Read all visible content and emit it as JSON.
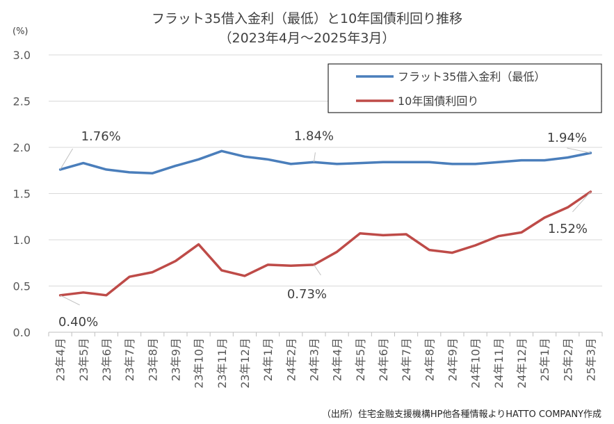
{
  "chart_data": {
    "type": "line",
    "title": "フラット35借入金利（最低）と10年国債利回り推移",
    "subtitle": "（2023年4月～2025年3月）",
    "ylabel": "(%)",
    "xlabel": "",
    "ylim": [
      0.0,
      3.0
    ],
    "yticks": [
      "0.0",
      "0.5",
      "1.0",
      "1.5",
      "2.0",
      "2.5",
      "3.0"
    ],
    "ytick_values": [
      0,
      0.5,
      1.0,
      1.5,
      2.0,
      2.5,
      3.0
    ],
    "grid": "horizontal",
    "legend_position": "top-right",
    "categories": [
      "23年4月",
      "23年5月",
      "23年6月",
      "23年7月",
      "23年8月",
      "23年9月",
      "23年10月",
      "23年11月",
      "23年12月",
      "24年1月",
      "24年2月",
      "24年3月",
      "24年4月",
      "24年5月",
      "24年6月",
      "24年7月",
      "24年8月",
      "24年9月",
      "24年10月",
      "24年11月",
      "24年12月",
      "25年1月",
      "25年2月",
      "25年3月"
    ],
    "series": [
      {
        "name": "フラット35借入金利（最低）",
        "color": "#4a7ebb",
        "values": [
          1.76,
          1.83,
          1.76,
          1.73,
          1.72,
          1.8,
          1.87,
          1.96,
          1.9,
          1.87,
          1.82,
          1.84,
          1.82,
          1.83,
          1.84,
          1.84,
          1.84,
          1.82,
          1.82,
          1.84,
          1.86,
          1.86,
          1.89,
          1.94
        ]
      },
      {
        "name": "10年国債利回り",
        "color": "#be4b48",
        "values": [
          0.4,
          0.43,
          0.4,
          0.6,
          0.65,
          0.77,
          0.95,
          0.67,
          0.61,
          0.73,
          0.72,
          0.73,
          0.87,
          1.07,
          1.05,
          1.06,
          0.89,
          0.86,
          0.94,
          1.04,
          1.08,
          1.24,
          1.35,
          1.52
        ]
      }
    ],
    "annotations": [
      {
        "series": 0,
        "index": 0,
        "text": "1.76%"
      },
      {
        "series": 0,
        "index": 11,
        "text": "1.84%"
      },
      {
        "series": 0,
        "index": 23,
        "text": "1.94%"
      },
      {
        "series": 1,
        "index": 0,
        "text": "0.40%"
      },
      {
        "series": 1,
        "index": 11,
        "text": "0.73%"
      },
      {
        "series": 1,
        "index": 23,
        "text": "1.52%"
      }
    ],
    "source": "（出所）住宅金融支援機構HP他各種情報よりHATTO COMPANY作成"
  }
}
